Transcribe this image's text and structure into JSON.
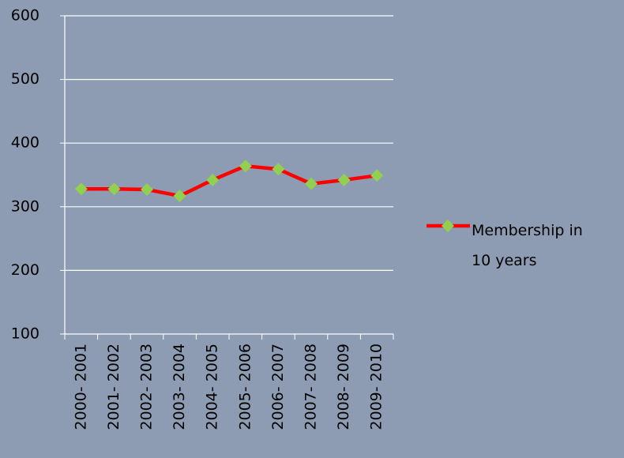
{
  "chart_data": {
    "type": "line",
    "categories": [
      "2000- 2001",
      "2001- 2002",
      "2002- 2003",
      "2003- 2004",
      "2004- 2005",
      "2005- 2006",
      "2006- 2007",
      "2007- 2008",
      "2008- 2009",
      "2009- 2010"
    ],
    "series": [
      {
        "name": "Membership in 10 years",
        "color": "#ff0000",
        "marker_color": "#92d050",
        "values": [
          328,
          328,
          327,
          317,
          342,
          364,
          359,
          336,
          342,
          349
        ]
      }
    ],
    "ylim": [
      100,
      600
    ],
    "yticks": [
      100,
      200,
      300,
      400,
      500,
      600
    ],
    "grid": true,
    "legend": "right"
  }
}
